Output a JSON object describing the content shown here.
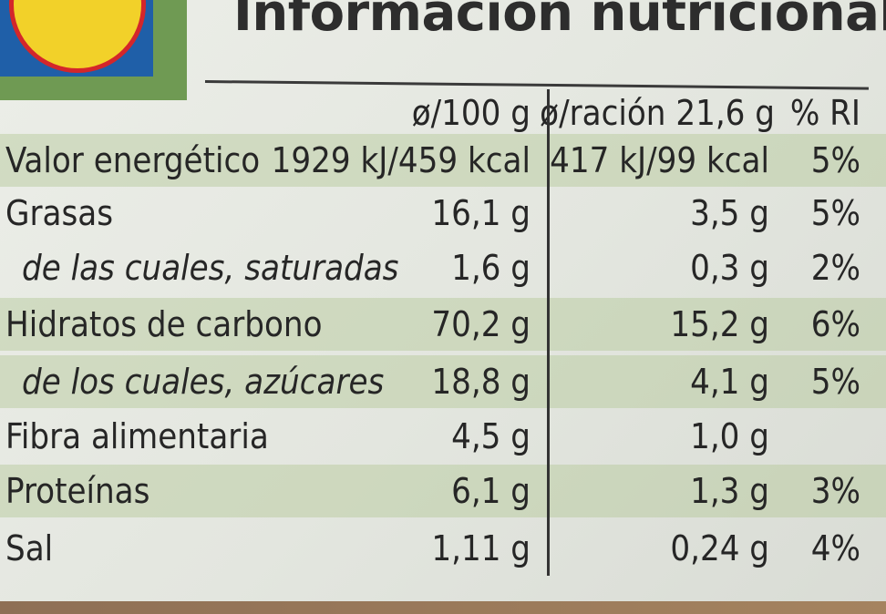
{
  "title": "Información nutricional",
  "header": {
    "per_100": "ø/100 g",
    "per_portion": "ø/ración 21,6 g",
    "ri": "% RI"
  },
  "rows": [
    {
      "label": "Valor energético",
      "per_100": "1929 kJ/459 kcal",
      "per_portion": "417 kJ/99 kcal",
      "ri": "5%"
    },
    {
      "label": "Grasas",
      "per_100": "16,1 g",
      "per_portion": "3,5 g",
      "ri": "5%"
    },
    {
      "label": "de las cuales, saturadas",
      "per_100": "1,6 g",
      "per_portion": "0,3 g",
      "ri": "2%"
    },
    {
      "label": "Hidratos de carbono",
      "per_100": "70,2 g",
      "per_portion": "15,2 g",
      "ri": "6%"
    },
    {
      "label": "de los cuales, azúcares",
      "per_100": "18,8 g",
      "per_portion": "4,1 g",
      "ri": "5%"
    },
    {
      "label": "Fibra alimentaria",
      "per_100": "4,5 g",
      "per_portion": "1,0 g",
      "ri": ""
    },
    {
      "label": "Proteínas",
      "per_100": "6,1 g",
      "per_portion": "1,3 g",
      "ri": "3%"
    },
    {
      "label": "Sal",
      "per_100": "1,11 g",
      "per_portion": "0,24 g",
      "ri": "4%"
    }
  ],
  "colors": {
    "shade": "#b4c896",
    "text": "#262626",
    "logo_blue": "#1f5fa8",
    "logo_yellow": "#f2d129",
    "logo_red": "#d4262a"
  }
}
